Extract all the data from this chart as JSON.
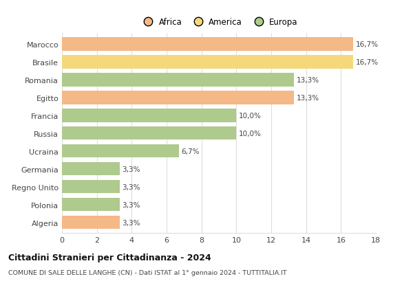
{
  "countries": [
    "Marocco",
    "Brasile",
    "Romania",
    "Egitto",
    "Francia",
    "Russia",
    "Ucraina",
    "Germania",
    "Regno Unito",
    "Polonia",
    "Algeria"
  ],
  "values": [
    16.7,
    16.7,
    13.3,
    13.3,
    10.0,
    10.0,
    6.7,
    3.3,
    3.3,
    3.3,
    3.3
  ],
  "labels": [
    "16,7%",
    "16,7%",
    "13,3%",
    "13,3%",
    "10,0%",
    "10,0%",
    "6,7%",
    "3,3%",
    "3,3%",
    "3,3%",
    "3,3%"
  ],
  "colors": [
    "#F5B887",
    "#F5D87A",
    "#AECA8C",
    "#F5B887",
    "#AECA8C",
    "#AECA8C",
    "#AECA8C",
    "#AECA8C",
    "#AECA8C",
    "#AECA8C",
    "#F5B887"
  ],
  "legend_labels": [
    "Africa",
    "America",
    "Europa"
  ],
  "legend_colors": [
    "#F5B887",
    "#F5D87A",
    "#AECA8C"
  ],
  "title": "Cittadini Stranieri per Cittadinanza - 2024",
  "subtitle": "COMUNE DI SALE DELLE LANGHE (CN) - Dati ISTAT al 1° gennaio 2024 - TUTTITALIA.IT",
  "xlim": [
    0,
    18
  ],
  "xticks": [
    0,
    2,
    4,
    6,
    8,
    10,
    12,
    14,
    16,
    18
  ],
  "bg_color": "#ffffff",
  "grid_color": "#dddddd",
  "bar_height": 0.75
}
